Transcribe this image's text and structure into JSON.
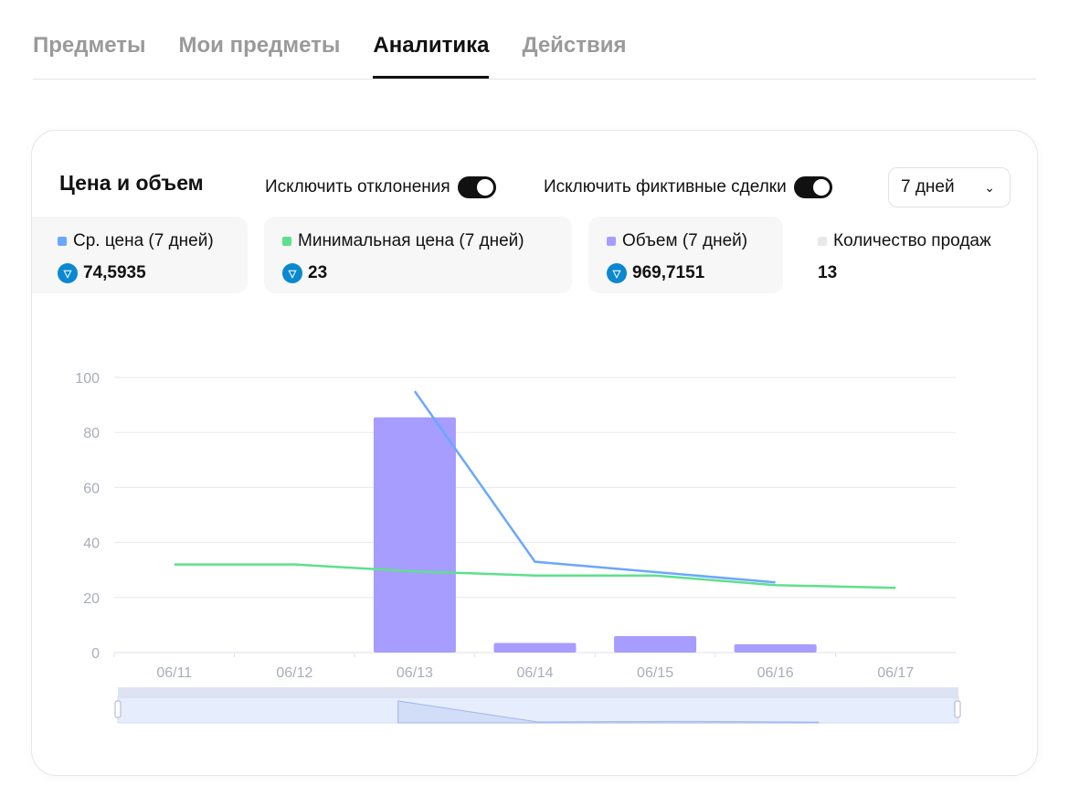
{
  "tabs": [
    {
      "label": "Предметы"
    },
    {
      "label": "Мои предметы"
    },
    {
      "label": "Аналитика",
      "active": true
    },
    {
      "label": "Действия"
    }
  ],
  "card": {
    "title": "Цена и объем",
    "toggle1": "Исключить отклонения",
    "toggle2": "Исключить фиктивные сделки",
    "period": "7 дней",
    "stats": [
      {
        "label": "Ср. цена (7 дней)",
        "value": "74,5935",
        "color": "#6aa7ff",
        "icon": "ton-icon"
      },
      {
        "label": "Минимальная цена (7 дней)",
        "value": "23",
        "color": "#5ee08c",
        "icon": "ton-icon"
      },
      {
        "label": "Объем (7 дней)",
        "value": "969,7151",
        "color": "#a79cff",
        "icon": "ton-icon"
      },
      {
        "label": "Количество продаж",
        "value": "13",
        "color": "#e8e8e8"
      }
    ]
  },
  "chart_data": {
    "type": "bar+line",
    "categories": [
      "06/11",
      "06/12",
      "06/13",
      "06/14",
      "06/15",
      "06/16",
      "06/17"
    ],
    "ylim": [
      0,
      100
    ],
    "yticks": [
      "0",
      "20",
      "40",
      "60",
      "80",
      "100"
    ],
    "series": [
      {
        "name": "Объем",
        "type": "bar",
        "color": "#a79cff",
        "values": [
          0,
          0,
          85.5,
          3.5,
          6,
          3,
          0
        ]
      },
      {
        "name": "Ср. цена",
        "type": "line",
        "color": "#6aa7ff",
        "values": [
          null,
          null,
          95,
          33,
          null,
          25.5,
          null
        ]
      },
      {
        "name": "Минимальная цена",
        "type": "line",
        "color": "#5ee08c",
        "values": [
          32,
          32,
          29.5,
          28,
          28,
          24.5,
          23.5
        ]
      }
    ]
  }
}
